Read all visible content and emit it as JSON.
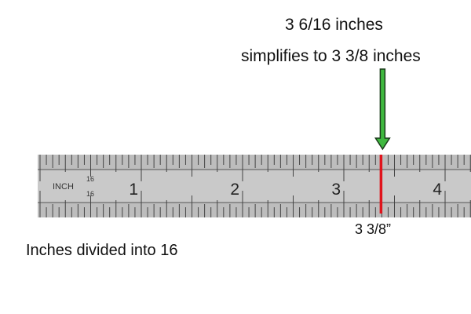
{
  "annotation": {
    "measurement": "3 6/16 inches",
    "simplified": "simplifies to 3 3/8 inches",
    "result_label": "3 3/8”"
  },
  "caption": "Inches divided into 16",
  "ruler": {
    "unit_label": "INCH",
    "division_top": "16",
    "division_bottom": "16",
    "numbers": [
      "1",
      "2",
      "3",
      "4"
    ],
    "divisions_per_inch": 16,
    "marked_value_inches": 3.375,
    "colors": {
      "body": "#c9c9c9",
      "marker": "#e0141c",
      "arrow": "#3fb83f"
    }
  }
}
